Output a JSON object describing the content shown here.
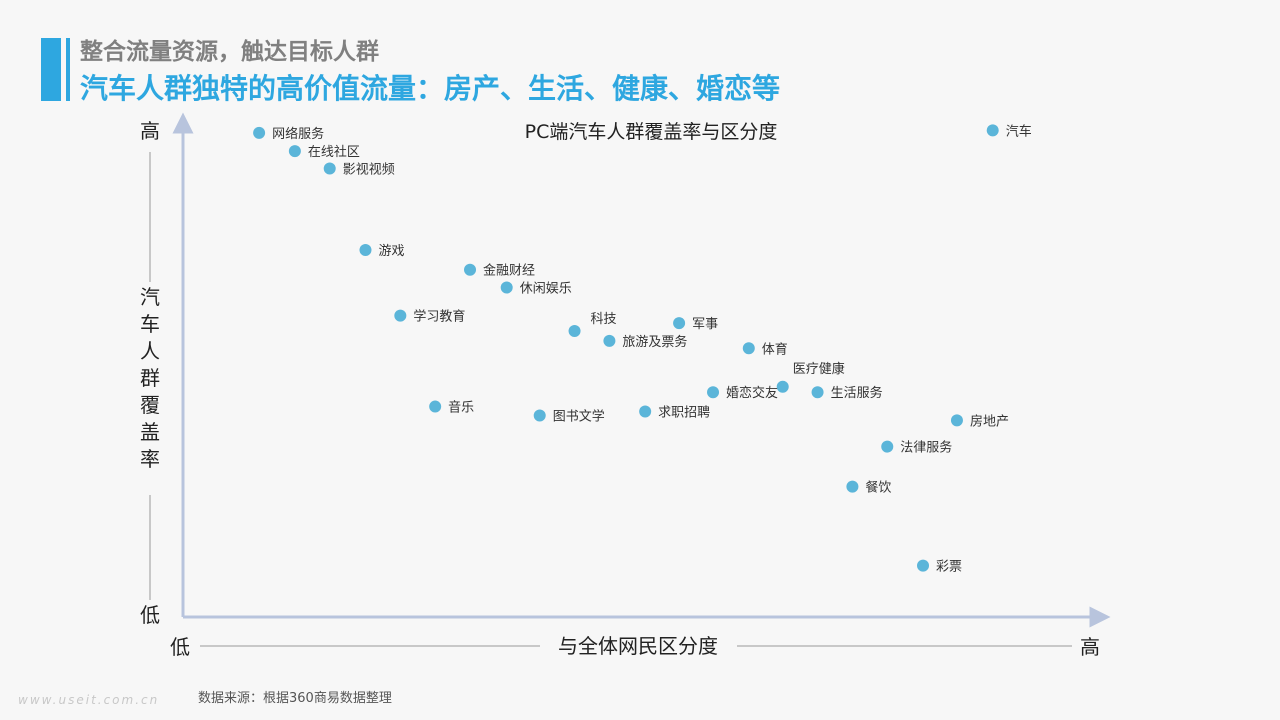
{
  "header": {
    "title": "整合流量资源，触达目标人群",
    "subtitle": "汽车人群独特的高价值流量：房产、生活、健康、婚恋等"
  },
  "source": "数据来源：根据360商易数据整理",
  "watermark": "www.useit.com.cn",
  "colors": {
    "accent": "#2ea7e0",
    "point": "#5bb5d9",
    "axis": "#b8c4dd"
  },
  "chart_data": {
    "type": "scatter",
    "title": "PC端汽车人群覆盖率与区分度",
    "xlabel": "与全体网民区分度",
    "ylabel": "汽车人群覆盖率",
    "x_low": "低",
    "x_high": "高",
    "y_low": "低",
    "y_high": "高",
    "xlim": [
      0,
      100
    ],
    "ylim": [
      0,
      100
    ],
    "grid": false,
    "points": [
      {
        "label": "网络服务",
        "x": 8.3,
        "y": 98.0
      },
      {
        "label": "在线社区",
        "x": 12.2,
        "y": 94.3
      },
      {
        "label": "影视视频",
        "x": 16.0,
        "y": 90.8
      },
      {
        "label": "游戏",
        "x": 19.9,
        "y": 74.3
      },
      {
        "label": "金融财经",
        "x": 31.3,
        "y": 70.3
      },
      {
        "label": "休闲娱乐",
        "x": 35.3,
        "y": 66.7
      },
      {
        "label": "学习教育",
        "x": 23.7,
        "y": 61.0
      },
      {
        "label": "科技",
        "x": 42.7,
        "y": 57.9
      },
      {
        "label": "旅游及票务",
        "x": 46.5,
        "y": 55.9
      },
      {
        "label": "军事",
        "x": 54.1,
        "y": 59.5
      },
      {
        "label": "体育",
        "x": 61.7,
        "y": 54.4
      },
      {
        "label": "医疗健康",
        "x": 65.4,
        "y": 46.6
      },
      {
        "label": "婚恋交友",
        "x": 57.8,
        "y": 45.5
      },
      {
        "label": "生活服务",
        "x": 69.2,
        "y": 45.5
      },
      {
        "label": "音乐",
        "x": 27.5,
        "y": 42.6
      },
      {
        "label": "图书文学",
        "x": 38.9,
        "y": 40.8
      },
      {
        "label": "求职招聘",
        "x": 50.4,
        "y": 41.6
      },
      {
        "label": "房地产",
        "x": 84.4,
        "y": 39.8
      },
      {
        "label": "法律服务",
        "x": 76.8,
        "y": 34.5
      },
      {
        "label": "餐饮",
        "x": 73.0,
        "y": 26.4
      },
      {
        "label": "彩票",
        "x": 80.7,
        "y": 10.4
      },
      {
        "label": "汽车",
        "x": 88.3,
        "y": 98.5
      }
    ]
  }
}
